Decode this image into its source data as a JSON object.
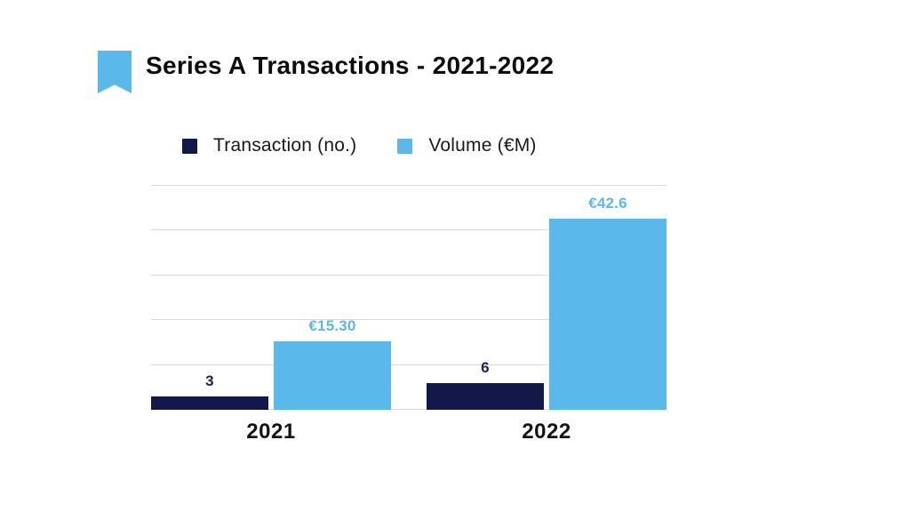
{
  "slide": {
    "title": "Series A Transactions - 2021-2022"
  },
  "header": {
    "bookmark_icon": "bookmark-ribbon",
    "accent_color": "#5ab9ea"
  },
  "legend": {
    "items": [
      {
        "label": "Transaction (no.)",
        "color": "#13184a"
      },
      {
        "label": "Volume (€M)",
        "color": "#5ab9ea"
      }
    ]
  },
  "chart_data": {
    "type": "bar",
    "title": "Series A Transactions - 2021-2022",
    "categories": [
      "2021",
      "2022"
    ],
    "series": [
      {
        "name": "Transaction (no.)",
        "color": "#13184a",
        "values": [
          3,
          6
        ],
        "labels": [
          "3",
          "6"
        ],
        "label_color": "#1b2055"
      },
      {
        "name": "Volume (€M)",
        "color": "#5ab9ea",
        "values": [
          15.3,
          42.6
        ],
        "labels": [
          "€15.30",
          "€42.6"
        ],
        "label_color": "#5ab9ea"
      }
    ],
    "xlabel": "",
    "ylabel": "",
    "ylim": [
      0,
      50
    ],
    "gridline_step": 10,
    "grid": true,
    "gridline_color": "#d9d9d9",
    "legend_position": "top"
  }
}
